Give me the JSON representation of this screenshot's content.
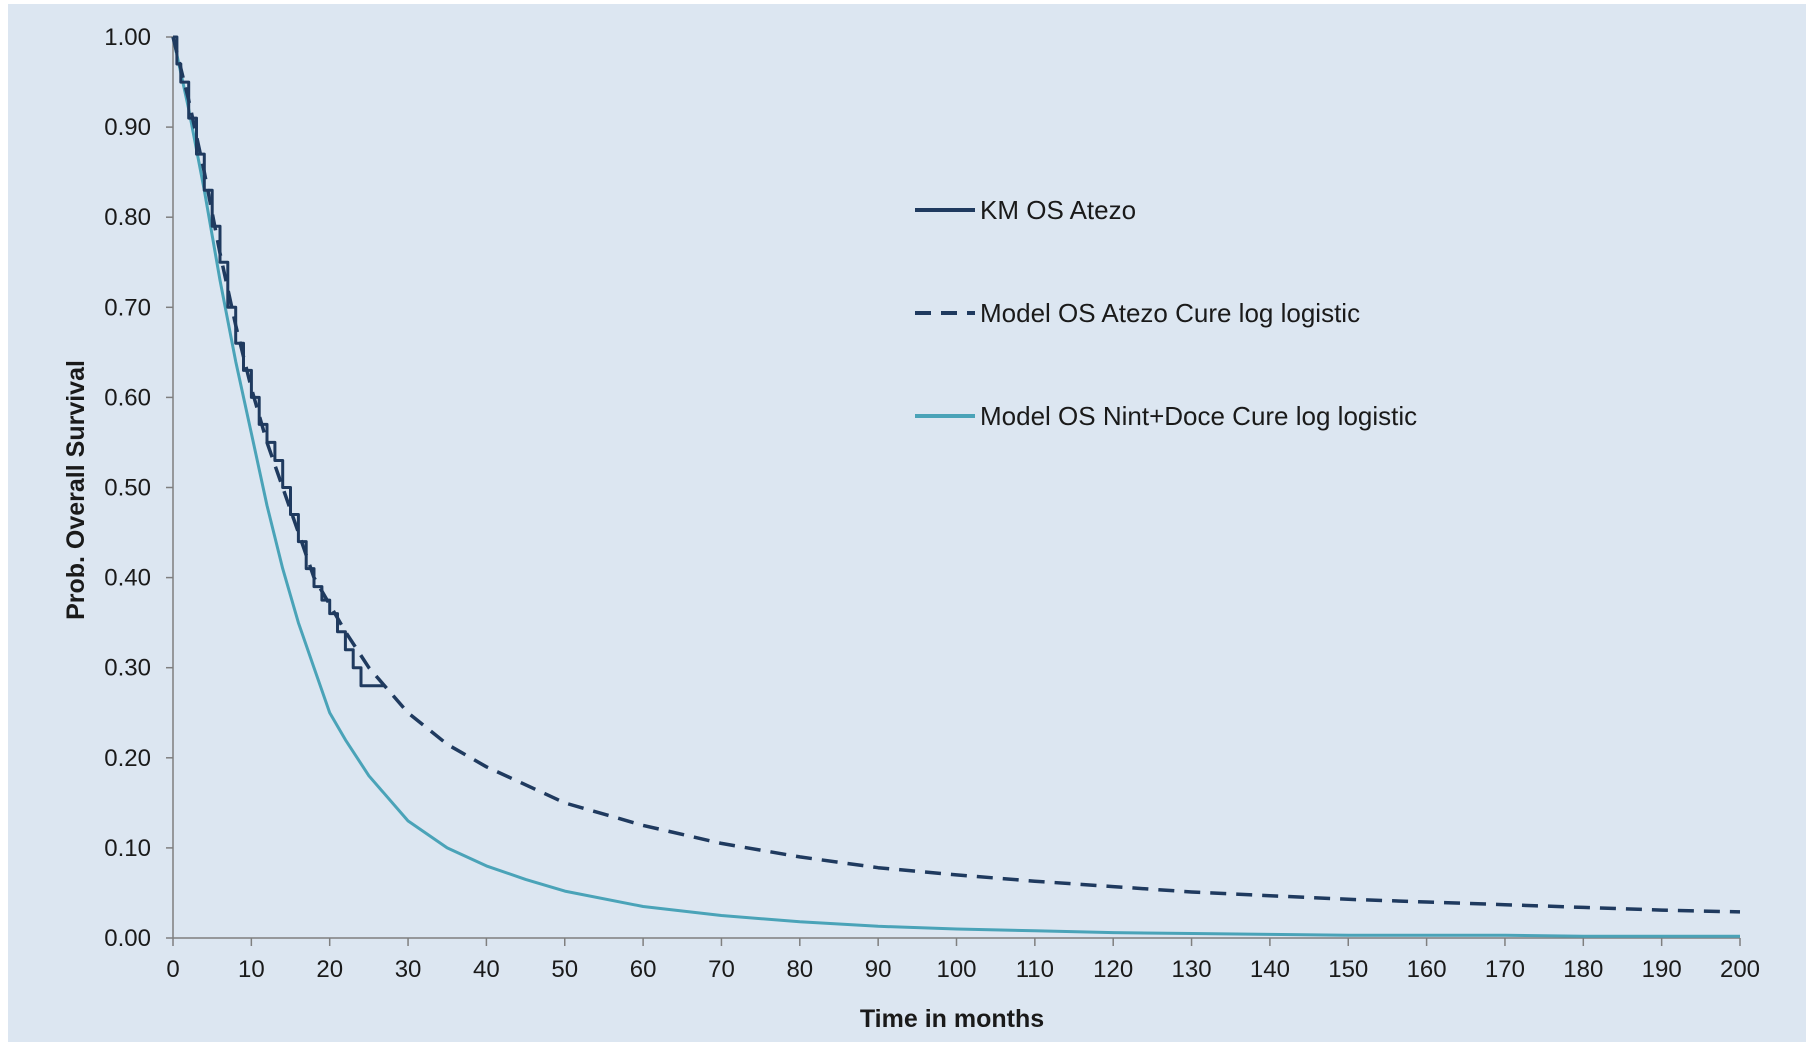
{
  "chart_data": {
    "type": "line",
    "title": "",
    "xlabel": "Time in months",
    "ylabel": "Prob. Overall Survival",
    "xlim": [
      0,
      200
    ],
    "ylim": [
      0,
      1
    ],
    "x_ticks": [
      0,
      10,
      20,
      30,
      40,
      50,
      60,
      70,
      80,
      90,
      100,
      110,
      120,
      130,
      140,
      150,
      160,
      170,
      180,
      190,
      200
    ],
    "x_tick_labels": [
      "0",
      "10",
      "20",
      "30",
      "40",
      "50",
      "60",
      "70",
      "80",
      "90",
      "100",
      "110",
      "120",
      "130",
      "140",
      "150",
      "160",
      "170",
      "180",
      "190",
      "200"
    ],
    "y_ticks": [
      0,
      0.1,
      0.2,
      0.3,
      0.4,
      0.5,
      0.6,
      0.7,
      0.8,
      0.9,
      1.0
    ],
    "y_tick_labels": [
      "0.00",
      "0.10",
      "0.20",
      "0.30",
      "0.40",
      "0.50",
      "0.60",
      "0.70",
      "0.80",
      "0.90",
      "1.00"
    ],
    "grid": false,
    "legend_position": "upper-center",
    "background_color": "#dce6f1",
    "series": [
      {
        "name": "KM OS Atezo",
        "color": "#1f3a5f",
        "style": "solid",
        "step": true,
        "x": [
          0,
          0.5,
          1,
          2,
          3,
          4,
          5,
          6,
          7,
          8,
          9,
          10,
          11,
          12,
          13,
          14,
          15,
          16,
          17,
          18,
          19,
          20,
          21,
          22,
          23,
          24,
          25,
          26,
          27
        ],
        "y": [
          1.0,
          0.97,
          0.95,
          0.91,
          0.87,
          0.83,
          0.79,
          0.75,
          0.7,
          0.66,
          0.63,
          0.6,
          0.57,
          0.55,
          0.53,
          0.5,
          0.47,
          0.44,
          0.41,
          0.39,
          0.375,
          0.36,
          0.34,
          0.32,
          0.3,
          0.28,
          0.28,
          0.28,
          0.28
        ]
      },
      {
        "name": "Model OS Atezo Cure log logistic",
        "color": "#1f3a5f",
        "style": "dashed",
        "x": [
          0,
          2,
          4,
          6,
          8,
          10,
          12,
          14,
          16,
          18,
          20,
          22,
          25,
          30,
          35,
          40,
          45,
          50,
          60,
          70,
          80,
          90,
          100,
          110,
          120,
          130,
          140,
          150,
          160,
          170,
          180,
          190,
          200
        ],
        "y": [
          1.0,
          0.93,
          0.85,
          0.76,
          0.68,
          0.61,
          0.55,
          0.5,
          0.45,
          0.4,
          0.37,
          0.34,
          0.3,
          0.25,
          0.215,
          0.19,
          0.17,
          0.15,
          0.125,
          0.105,
          0.09,
          0.078,
          0.07,
          0.063,
          0.057,
          0.051,
          0.047,
          0.043,
          0.04,
          0.037,
          0.034,
          0.031,
          0.029
        ]
      },
      {
        "name": "Model OS Nint+Doce Cure log logistic",
        "color": "#4aa3b8",
        "style": "solid",
        "x": [
          0,
          2,
          4,
          6,
          8,
          10,
          12,
          14,
          16,
          18,
          20,
          22,
          25,
          30,
          35,
          40,
          45,
          50,
          60,
          70,
          80,
          90,
          100,
          110,
          120,
          130,
          140,
          150,
          160,
          170,
          180,
          190,
          200
        ],
        "y": [
          1.0,
          0.92,
          0.83,
          0.73,
          0.64,
          0.56,
          0.48,
          0.41,
          0.35,
          0.3,
          0.25,
          0.22,
          0.18,
          0.13,
          0.1,
          0.08,
          0.065,
          0.052,
          0.035,
          0.025,
          0.018,
          0.013,
          0.01,
          0.008,
          0.006,
          0.005,
          0.004,
          0.003,
          0.003,
          0.003,
          0.002,
          0.002,
          0.002
        ]
      }
    ]
  }
}
